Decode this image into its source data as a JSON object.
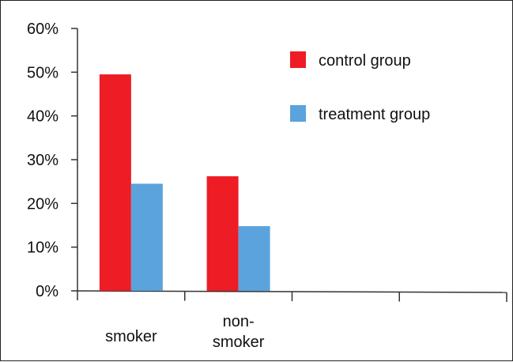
{
  "chart_data": {
    "type": "bar",
    "categories": [
      "smoker",
      "non-\nsmoker"
    ],
    "series": [
      {
        "name": "control group",
        "color": "#ee1c24",
        "values": [
          0.495,
          0.262
        ]
      },
      {
        "name": "treatment group",
        "color": "#5ba3dc",
        "values": [
          0.245,
          0.148
        ]
      }
    ],
    "ylim": [
      0,
      0.6
    ],
    "y_ticks": [
      0,
      0.1,
      0.2,
      0.3,
      0.4,
      0.5,
      0.6
    ],
    "y_tick_labels": [
      "0%",
      "10%",
      "20%",
      "30%",
      "40%",
      "50%",
      "60%"
    ],
    "x_slots": 4,
    "legend_position": "top-right",
    "grid": false,
    "title": "",
    "xlabel": "",
    "ylabel": ""
  }
}
